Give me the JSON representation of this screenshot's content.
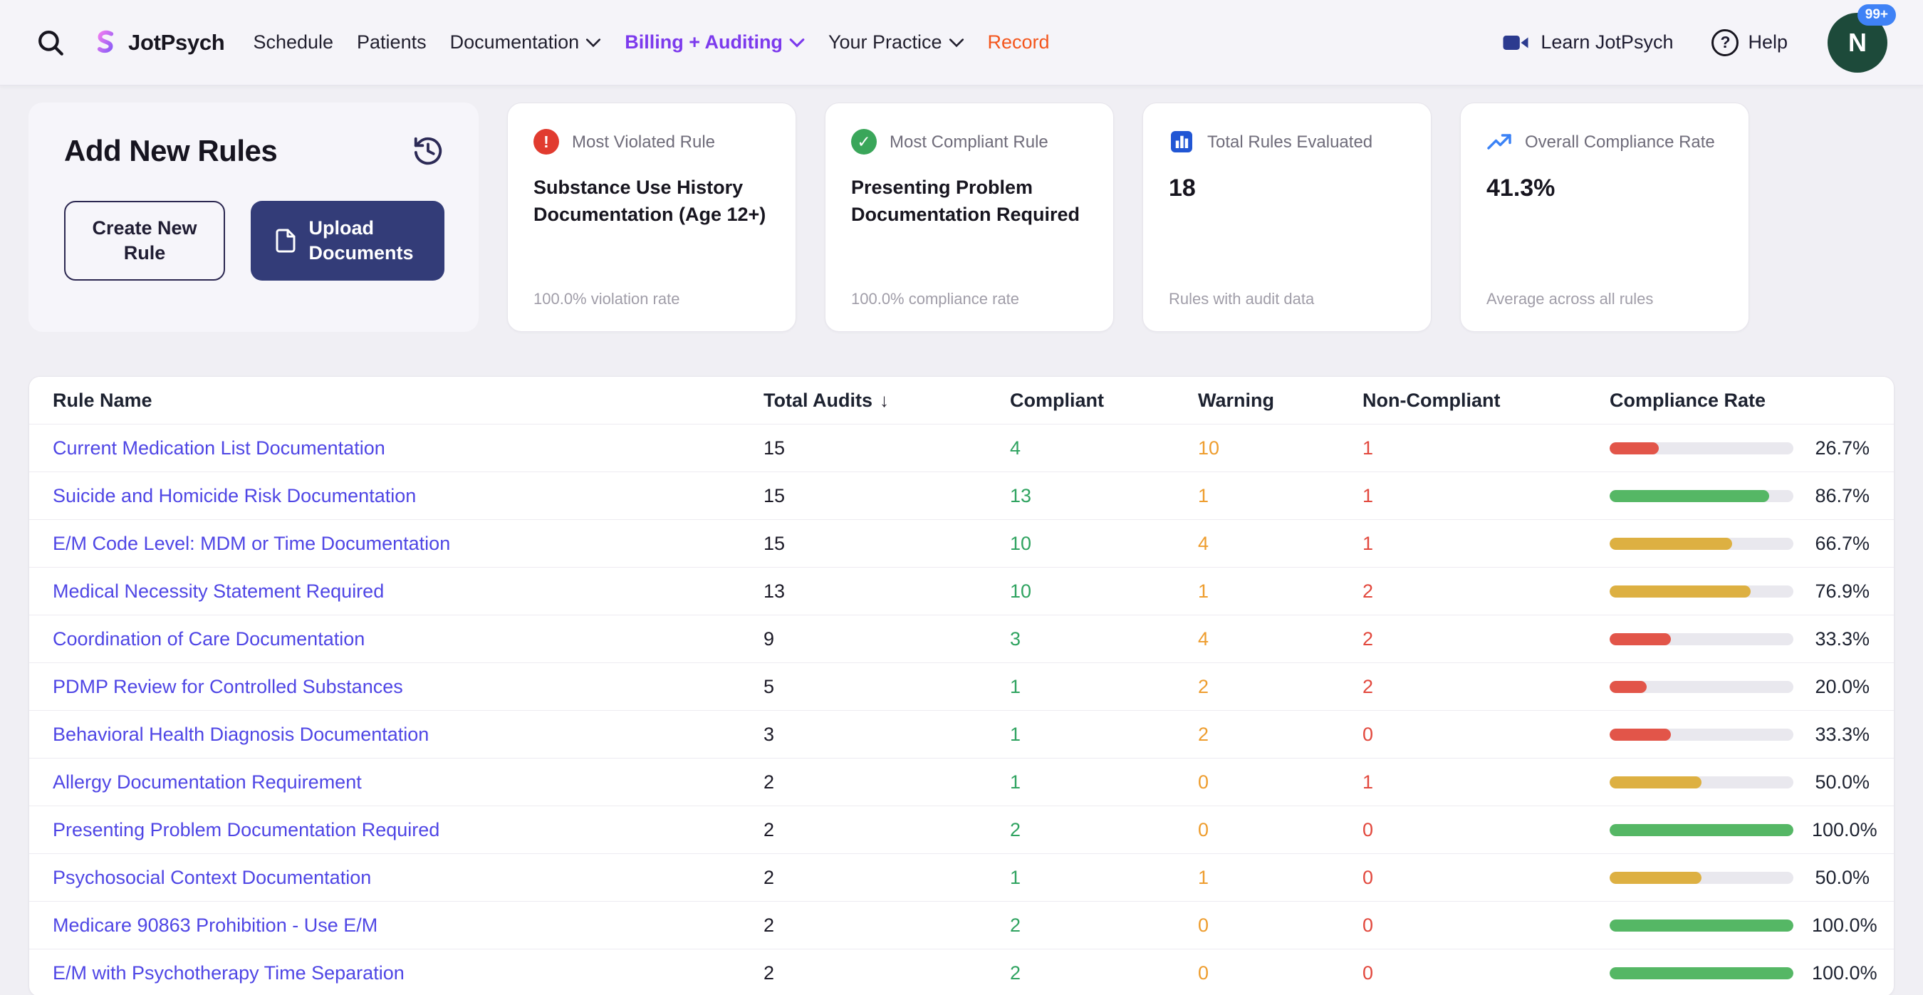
{
  "nav": {
    "logo_text": "JotPsych",
    "items": [
      {
        "label": "Schedule"
      },
      {
        "label": "Patients"
      },
      {
        "label": "Documentation",
        "dropdown": true
      },
      {
        "label": "Billing + Auditing",
        "dropdown": true,
        "active": true
      },
      {
        "label": "Your Practice",
        "dropdown": true
      },
      {
        "label": "Record",
        "accent": true
      }
    ],
    "learn_label": "Learn JotPsych",
    "help_label": "Help",
    "avatar_initial": "N",
    "avatar_badge": "99+"
  },
  "icons": {
    "help_glyph": "?",
    "alert_glyph": "!",
    "check_glyph": "✓",
    "sort_desc_glyph": "↓"
  },
  "add_rules": {
    "title": "Add New Rules",
    "create_button": "Create New Rule",
    "upload_button": "Upload Documents"
  },
  "stat_cards": [
    {
      "icon": "alert-icon",
      "title": "Most Violated Rule",
      "value": "Substance Use History Documentation (Age 12+)",
      "footer": "100.0% violation rate"
    },
    {
      "icon": "check-icon",
      "title": "Most Compliant Rule",
      "value": "Presenting Problem Documentation Required",
      "footer": "100.0% compliance rate"
    },
    {
      "icon": "bar-chart-icon",
      "title": "Total Rules Evaluated",
      "value": "18",
      "footer": "Rules with audit data"
    },
    {
      "icon": "trending-up-icon",
      "title": "Overall Compliance Rate",
      "value": "41.3%",
      "footer": "Average across all rules"
    }
  ],
  "table": {
    "columns": [
      "Rule Name",
      "Total Audits",
      "Compliant",
      "Warning",
      "Non-Compliant",
      "Compliance Rate"
    ],
    "sort": {
      "column": "Total Audits",
      "direction": "desc"
    },
    "rows": [
      {
        "name": "Current Medication List Documentation",
        "audits": 15,
        "compliant": 4,
        "warning": 10,
        "noncompliant": 1,
        "rate": 26.7,
        "rate_label": "26.7%",
        "level": "red"
      },
      {
        "name": "Suicide and Homicide Risk Documentation",
        "audits": 15,
        "compliant": 13,
        "warning": 1,
        "noncompliant": 1,
        "rate": 86.7,
        "rate_label": "86.7%",
        "level": "green"
      },
      {
        "name": "E/M Code Level: MDM or Time Documentation",
        "audits": 15,
        "compliant": 10,
        "warning": 4,
        "noncompliant": 1,
        "rate": 66.7,
        "rate_label": "66.7%",
        "level": "yellow"
      },
      {
        "name": "Medical Necessity Statement Required",
        "audits": 13,
        "compliant": 10,
        "warning": 1,
        "noncompliant": 2,
        "rate": 76.9,
        "rate_label": "76.9%",
        "level": "yellow"
      },
      {
        "name": "Coordination of Care Documentation",
        "audits": 9,
        "compliant": 3,
        "warning": 4,
        "noncompliant": 2,
        "rate": 33.3,
        "rate_label": "33.3%",
        "level": "red"
      },
      {
        "name": "PDMP Review for Controlled Substances",
        "audits": 5,
        "compliant": 1,
        "warning": 2,
        "noncompliant": 2,
        "rate": 20.0,
        "rate_label": "20.0%",
        "level": "red"
      },
      {
        "name": "Behavioral Health Diagnosis Documentation",
        "audits": 3,
        "compliant": 1,
        "warning": 2,
        "noncompliant": 0,
        "rate": 33.3,
        "rate_label": "33.3%",
        "level": "red"
      },
      {
        "name": "Allergy Documentation Requirement",
        "audits": 2,
        "compliant": 1,
        "warning": 0,
        "noncompliant": 1,
        "rate": 50.0,
        "rate_label": "50.0%",
        "level": "yellow"
      },
      {
        "name": "Presenting Problem Documentation Required",
        "audits": 2,
        "compliant": 2,
        "warning": 0,
        "noncompliant": 0,
        "rate": 100.0,
        "rate_label": "100.0%",
        "level": "green"
      },
      {
        "name": "Psychosocial Context Documentation",
        "audits": 2,
        "compliant": 1,
        "warning": 1,
        "noncompliant": 0,
        "rate": 50.0,
        "rate_label": "50.0%",
        "level": "yellow"
      },
      {
        "name": "Medicare 90863 Prohibition - Use E/M",
        "audits": 2,
        "compliant": 2,
        "warning": 0,
        "noncompliant": 0,
        "rate": 100.0,
        "rate_label": "100.0%",
        "level": "green"
      },
      {
        "name": "E/M with Psychotherapy Time Separation",
        "audits": 2,
        "compliant": 2,
        "warning": 0,
        "noncompliant": 0,
        "rate": 100.0,
        "rate_label": "100.0%",
        "level": "green"
      }
    ]
  },
  "colors": {
    "brand_purple": "#7c3aed",
    "record_orange": "#f4551c",
    "link_indigo": "#4f46e5",
    "compliant_green": "#2fa360",
    "warning_orange": "#ee9d2e",
    "noncompliant_red": "#e2483d",
    "button_navy": "#333c78",
    "avatar_green": "#1d4a3a",
    "badge_blue": "#3f82f6",
    "levels": {
      "red": "#e25549",
      "yellow": "#ddb042",
      "green": "#55b765"
    }
  }
}
